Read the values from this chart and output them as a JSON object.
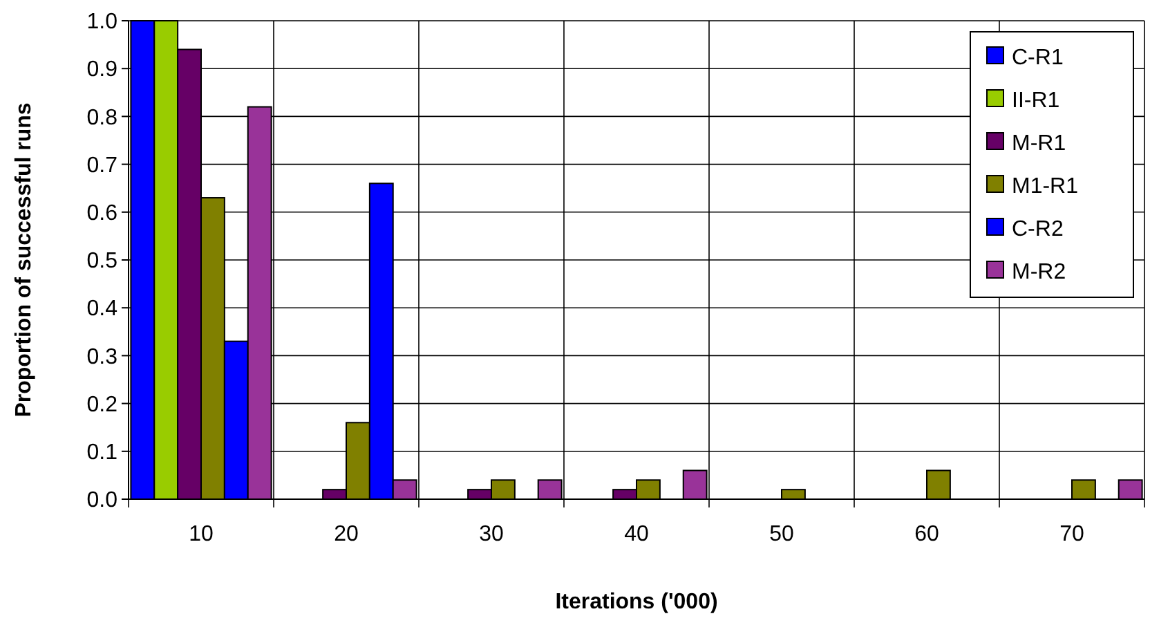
{
  "chart_data": {
    "type": "bar",
    "xlabel": "Iterations ('000)",
    "ylabel": "Proportion of successful runs",
    "categories": [
      "10",
      "20",
      "30",
      "40",
      "50",
      "60",
      "70"
    ],
    "series": [
      {
        "name": "C-R1",
        "color": "#0000ff",
        "values": [
          1.0,
          0,
          0,
          0,
          0,
          0,
          0
        ]
      },
      {
        "name": "II-R1",
        "color": "#99cc00",
        "values": [
          1.0,
          0,
          0,
          0,
          0,
          0,
          0
        ]
      },
      {
        "name": "M-R1",
        "color": "#660066",
        "values": [
          0.94,
          0.02,
          0.02,
          0.02,
          0,
          0,
          0
        ]
      },
      {
        "name": "M1-R1",
        "color": "#808000",
        "values": [
          0.63,
          0.16,
          0.04,
          0.04,
          0.02,
          0.06,
          0.04
        ]
      },
      {
        "name": "C-R2",
        "color": "#0000ff",
        "values": [
          0.33,
          0.66,
          0,
          0,
          0,
          0,
          0
        ]
      },
      {
        "name": "M-R2",
        "color": "#993399",
        "values": [
          0.82,
          0.04,
          0.04,
          0.06,
          0,
          0,
          0.04
        ]
      }
    ],
    "ylim": [
      0,
      1.0
    ],
    "yticks": [
      {
        "value": 0,
        "label": "0.0"
      },
      0.1,
      0.2,
      0.3,
      0.4,
      0.5,
      0.6,
      0.7,
      0.8,
      0.9,
      {
        "value": 1,
        "label": "1.0"
      }
    ],
    "grid": true,
    "legend": "top right"
  }
}
